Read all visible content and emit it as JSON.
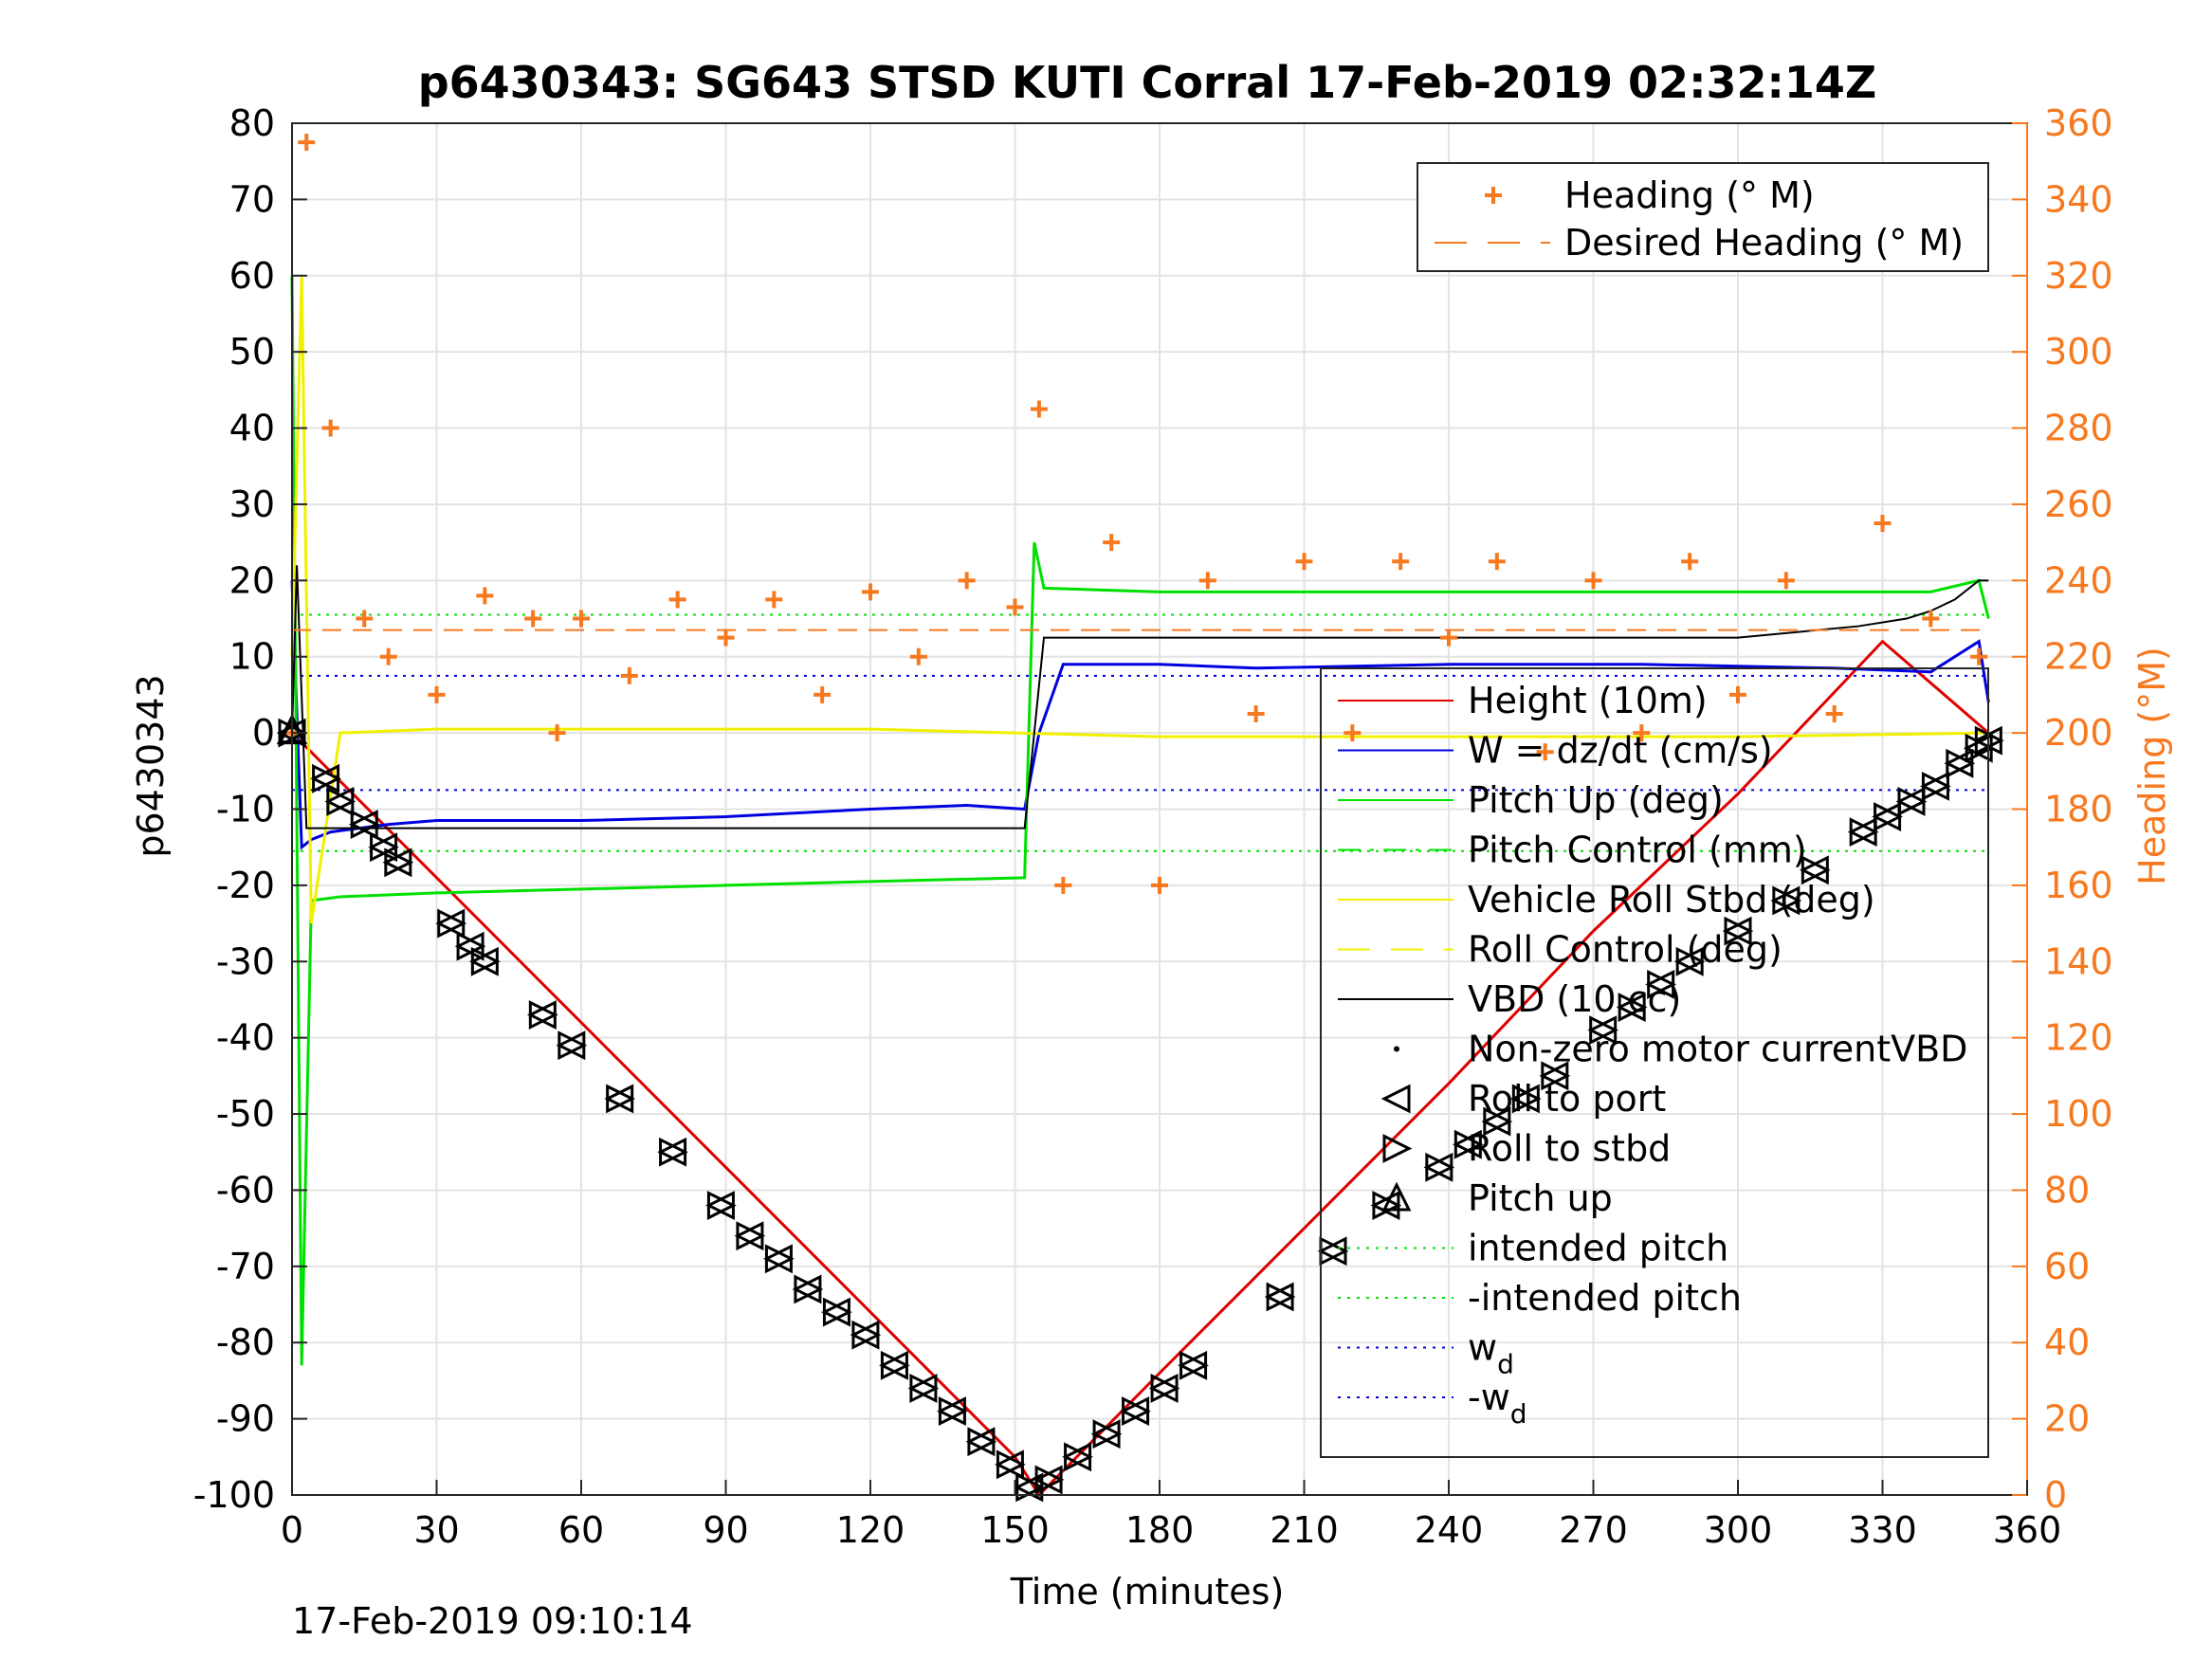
{
  "chart_data": {
    "type": "line",
    "title": "p6430343: SG643 STSD KUTI Corral 17-Feb-2019 02:32:14Z",
    "xlabel": "Time (minutes)",
    "ylabel_left": "p6430343",
    "ylabel_right": "Heading (°M)",
    "xlim": [
      0,
      360
    ],
    "ylim_left": [
      -100,
      80
    ],
    "ylim_right": [
      0,
      360
    ],
    "xticks": [
      0,
      30,
      60,
      90,
      120,
      150,
      180,
      210,
      240,
      270,
      300,
      330,
      360
    ],
    "yticks_left": [
      80,
      70,
      60,
      50,
      40,
      30,
      20,
      10,
      0,
      -10,
      -20,
      -30,
      -40,
      -50,
      -60,
      -70,
      -80,
      -90,
      -100
    ],
    "yticks_right": [
      360,
      340,
      320,
      300,
      280,
      260,
      240,
      220,
      200,
      180,
      160,
      140,
      120,
      100,
      80,
      60,
      40,
      20,
      0
    ],
    "grid": true,
    "colors": {
      "heading": "#f7791f",
      "height": "#e00000",
      "w": "#0000e0",
      "pitch": "#00e000",
      "roll": "#f0f000",
      "vbd": "#000000"
    },
    "legend_top": [
      {
        "label": "Heading (° M)",
        "style": "plus",
        "color": "#f7791f"
      },
      {
        "label": "Desired Heading (° M)",
        "style": "dash",
        "color": "#f7791f"
      }
    ],
    "legend_main": [
      {
        "label": "Height (10m)",
        "style": "line",
        "color": "#e00000"
      },
      {
        "label": "W = dz/dt (cm/s)",
        "style": "line",
        "color": "#0000e0"
      },
      {
        "label": "Pitch Up (deg)",
        "style": "line",
        "color": "#00e000"
      },
      {
        "label": "Pitch Control (mm)",
        "style": "dashdot",
        "color": "#00e000"
      },
      {
        "label": "Vehicle Roll Stbd (deg)",
        "style": "line",
        "color": "#f0f000"
      },
      {
        "label": "Roll Control (deg)",
        "style": "dash",
        "color": "#f0f000"
      },
      {
        "label": "VBD (10 cc)",
        "style": "line",
        "color": "#000000"
      },
      {
        "label": "Non-zero motor currentVBD",
        "style": "dot",
        "color": "#000000"
      },
      {
        "label": "Roll to port",
        "style": "tri-left",
        "color": "#000000"
      },
      {
        "label": "Roll to stbd",
        "style": "tri-right",
        "color": "#000000"
      },
      {
        "label": "Pitch up",
        "style": "tri-up",
        "color": "#000000"
      },
      {
        "label": "intended pitch",
        "style": "dotted",
        "color": "#00e000"
      },
      {
        "label": "-intended pitch",
        "style": "dotted",
        "color": "#00e000"
      },
      {
        "label": "w",
        "sub": "d",
        "style": "dotted",
        "color": "#0000e0"
      },
      {
        "label": "-w",
        "sub": "d",
        "style": "dotted",
        "color": "#0000e0"
      }
    ],
    "series": [
      {
        "name": "Height (10m)",
        "axis": "left",
        "x": [
          0,
          30,
          60,
          90,
          120,
          150,
          155,
          180,
          210,
          240,
          270,
          300,
          330,
          352
        ],
        "y": [
          0,
          -19,
          -38,
          -57,
          -76,
          -95,
          -100,
          -84,
          -65,
          -46,
          -26,
          -8,
          12,
          0
        ]
      },
      {
        "name": "W = dz/dt (cm/s)",
        "axis": "left",
        "x": [
          0,
          2,
          4,
          8,
          20,
          30,
          60,
          90,
          120,
          140,
          152,
          155,
          160,
          180,
          200,
          240,
          280,
          320,
          340,
          350,
          352
        ],
        "y": [
          20,
          -15,
          -14,
          -13,
          -12,
          -11.5,
          -11.5,
          -11,
          -10,
          -9.5,
          -10,
          0,
          9,
          9,
          8.5,
          9,
          9,
          8.5,
          8,
          12,
          4
        ]
      },
      {
        "name": "Pitch Up (deg)",
        "axis": "left",
        "x": [
          0,
          2,
          4,
          10,
          30,
          60,
          90,
          120,
          152,
          154,
          156,
          180,
          240,
          300,
          340,
          350,
          352
        ],
        "y": [
          60,
          -83,
          -22,
          -21.5,
          -21,
          -20.5,
          -20,
          -19.5,
          -19,
          25,
          19,
          18.5,
          18.5,
          18.5,
          18.5,
          20,
          15
        ]
      },
      {
        "name": "Vehicle Roll Stbd (deg)",
        "axis": "left",
        "x": [
          0,
          2,
          4,
          10,
          30,
          60,
          90,
          120,
          150,
          180,
          240,
          300,
          352
        ],
        "y": [
          10,
          60,
          -25,
          0,
          0.5,
          0.5,
          0.5,
          0.5,
          0,
          -0.5,
          -0.5,
          -0.5,
          0
        ]
      },
      {
        "name": "VBD (10 cc)",
        "axis": "left",
        "x": [
          0,
          1,
          3,
          100,
          152,
          156,
          300,
          325,
          335,
          340,
          345,
          350,
          352
        ],
        "y": [
          0,
          22,
          -12.5,
          -12.5,
          -12.5,
          12.5,
          12.5,
          14,
          15,
          16,
          17.5,
          20,
          20
        ]
      },
      {
        "name": "Heading (° M)",
        "axis": "right",
        "x": [
          0,
          3,
          8,
          15,
          20,
          30,
          40,
          50,
          55,
          60,
          70,
          80,
          90,
          100,
          110,
          120,
          130,
          140,
          150,
          155,
          160,
          170,
          180,
          190,
          200,
          210,
          220,
          230,
          240,
          250,
          260,
          270,
          280,
          290,
          300,
          310,
          320,
          330,
          340,
          350
        ],
        "y": [
          200,
          355,
          280,
          230,
          220,
          210,
          236,
          230,
          200,
          230,
          215,
          235,
          225,
          235,
          210,
          237,
          220,
          240,
          233,
          285,
          160,
          250,
          160,
          240,
          205,
          245,
          200,
          245,
          225,
          245,
          195,
          240,
          200,
          245,
          210,
          240,
          205,
          255,
          230,
          220
        ]
      },
      {
        "name": "Desired Heading (° M)",
        "axis": "right",
        "x": [
          0,
          352
        ],
        "y": [
          227,
          227
        ]
      }
    ],
    "reference_lines": [
      {
        "label": "intended pitch",
        "y": 15.5,
        "color": "#00e000"
      },
      {
        "label": "-intended pitch",
        "y": -15.5,
        "color": "#00e000"
      },
      {
        "label": "w_d",
        "y": 7.5,
        "color": "#0000e0"
      },
      {
        "label": "-w_d",
        "y": -7.5,
        "color": "#0000e0"
      }
    ],
    "markers_roll": {
      "x": [
        0,
        7,
        10,
        15,
        19,
        22,
        33,
        37,
        40,
        52,
        58,
        68,
        79,
        89,
        95,
        101,
        107,
        113,
        119,
        125,
        131,
        137,
        143,
        149,
        153,
        157,
        163,
        169,
        175,
        181,
        187,
        205,
        216,
        227,
        238,
        244,
        250,
        256,
        262,
        272,
        278,
        284,
        290,
        300,
        310,
        316,
        326,
        331,
        336,
        341,
        346,
        350,
        352
      ],
      "y": [
        0,
        -6,
        -9,
        -12,
        -15,
        -17,
        -25,
        -28,
        -30,
        -37,
        -41,
        -48,
        -55,
        -62,
        -66,
        -69,
        -73,
        -76,
        -79,
        -83,
        -86,
        -89,
        -93,
        -96,
        -99,
        -98,
        -95,
        -92,
        -89,
        -86,
        -83,
        -74,
        -68,
        -62,
        -57,
        -54,
        -51,
        -48,
        -45,
        -39,
        -36,
        -33,
        -30,
        -26,
        -22,
        -18,
        -13,
        -11,
        -9,
        -7,
        -4,
        -2,
        -1
      ]
    }
  },
  "footer": {
    "timestamp": "17-Feb-2019 09:10:14"
  }
}
